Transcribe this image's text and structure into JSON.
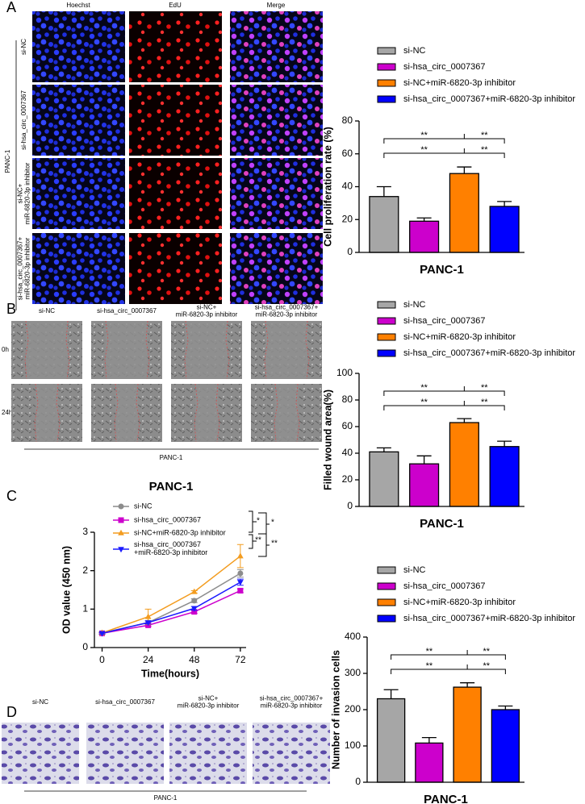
{
  "panel_labels": [
    "A",
    "B",
    "C",
    "D"
  ],
  "panel_a": {
    "columns": [
      "Hoechst",
      "EdU",
      "Merge"
    ],
    "rows": [
      "si-NC",
      "si-hsa_circ_0007367",
      "si-NC+\nmiR-6820-3p inhibitor",
      "si-hsa_circ_0007367+\nmiR-6820-3p inhibitor"
    ],
    "group": "PANC-1"
  },
  "panel_b": {
    "columns": [
      "si-NC",
      "si-hsa_circ_0007367",
      "si-NC+\nmiR-6820-3p inhibitor",
      "si-hsa_circ_0007367+\nmiR-6820-3p inhibitor"
    ],
    "rows": [
      "0h",
      "24h"
    ],
    "group": "PANC-1"
  },
  "panel_d": {
    "columns": [
      "si-NC",
      "si-hsa_circ_0007367",
      "si-NC+\nmiR-6820-3p inhibitor",
      "si-hsa_circ_0007367+\nmiR-6820-3p inhibitor"
    ],
    "group": "PANC-1"
  },
  "chart_data": [
    {
      "type": "bar",
      "xlabel": "PANC-1",
      "ylabel": "Cell proliferation rate (%)",
      "ylim": [
        0,
        80
      ],
      "yticks": [
        0,
        20,
        40,
        60,
        80
      ],
      "series": [
        {
          "name": "si-NC",
          "color": "#a6a6a6",
          "values": [
            34
          ],
          "errors": [
            6
          ]
        },
        {
          "name": "si-hsa_circ_0007367",
          "color": "#cc00cc",
          "values": [
            19
          ],
          "errors": [
            2
          ]
        },
        {
          "name": "si-NC+miR-6820-3p inhibitor",
          "color": "#ff8000",
          "values": [
            48
          ],
          "errors": [
            4
          ]
        },
        {
          "name": "si-hsa_circ_0007367+miR-6820-3p inhibitor",
          "color": "#0000ff",
          "values": [
            28
          ],
          "errors": [
            3
          ]
        }
      ],
      "annotations": [
        "**",
        "**",
        "**",
        "**"
      ]
    },
    {
      "type": "bar",
      "xlabel": "PANC-1",
      "ylabel": "Filled wound area(%)",
      "ylim": [
        0,
        100
      ],
      "yticks": [
        0,
        20,
        40,
        60,
        80,
        100
      ],
      "series": [
        {
          "name": "si-NC",
          "color": "#a6a6a6",
          "values": [
            41
          ],
          "errors": [
            3
          ]
        },
        {
          "name": "si-hsa_circ_0007367",
          "color": "#cc00cc",
          "values": [
            32
          ],
          "errors": [
            6
          ]
        },
        {
          "name": "si-NC+miR-6820-3p inhibitor",
          "color": "#ff8000",
          "values": [
            63
          ],
          "errors": [
            3
          ]
        },
        {
          "name": "si-hsa_circ_0007367+miR-6820-3p inhibitor",
          "color": "#0000ff",
          "values": [
            45
          ],
          "errors": [
            4
          ]
        }
      ],
      "annotations": [
        "**",
        "**",
        "**",
        "**"
      ]
    },
    {
      "type": "line",
      "title": "PANC-1",
      "xlabel": "Time(hours)",
      "ylabel": "OD value (450 nm)",
      "x": [
        0,
        24,
        48,
        72
      ],
      "xlim": [
        -4,
        75
      ],
      "xticks": [
        0,
        24,
        48,
        72
      ],
      "ylim": [
        0,
        3
      ],
      "yticks": [
        0,
        1,
        2,
        3
      ],
      "series": [
        {
          "name": "si-NC",
          "color": "#8c8c8c",
          "marker": "circle",
          "values": [
            0.38,
            0.65,
            1.22,
            1.93
          ],
          "errors": [
            0.02,
            0.05,
            0.05,
            0.1
          ]
        },
        {
          "name": "si-hsa_circ_0007367",
          "color": "#cc00cc",
          "marker": "square",
          "values": [
            0.37,
            0.58,
            0.93,
            1.48
          ],
          "errors": [
            0.02,
            0.03,
            0.04,
            0.05
          ]
        },
        {
          "name": "si-NC+miR-6820-3p inhibitor",
          "color": "#f39c1f",
          "marker": "triangle",
          "values": [
            0.38,
            0.8,
            1.45,
            2.38
          ],
          "errors": [
            0.03,
            0.2,
            0.03,
            0.3
          ]
        },
        {
          "name": "si-hsa_circ_0007367\n+miR-6820-3p inhibitor",
          "color": "#1a1aff",
          "marker": "triangle-down",
          "values": [
            0.37,
            0.65,
            1.02,
            1.7
          ],
          "errors": [
            0.02,
            0.04,
            0.05,
            0.08
          ]
        }
      ],
      "annotations": [
        "*",
        "*",
        "**",
        "**"
      ]
    },
    {
      "type": "bar",
      "xlabel": "PANC-1",
      "ylabel": "Number of invasion cells",
      "ylim": [
        0,
        400
      ],
      "yticks": [
        0,
        100,
        200,
        300,
        400
      ],
      "series": [
        {
          "name": "si-NC",
          "color": "#a6a6a6",
          "values": [
            230
          ],
          "errors": [
            25
          ]
        },
        {
          "name": "si-hsa_circ_0007367",
          "color": "#cc00cc",
          "values": [
            108
          ],
          "errors": [
            15
          ]
        },
        {
          "name": "si-NC+miR-6820-3p inhibitor",
          "color": "#ff8000",
          "values": [
            262
          ],
          "errors": [
            12
          ]
        },
        {
          "name": "si-hsa_circ_0007367+miR-6820-3p inhibitor",
          "color": "#0000ff",
          "values": [
            200
          ],
          "errors": [
            10
          ]
        }
      ],
      "annotations": [
        "**",
        "**",
        "**",
        "**"
      ]
    }
  ]
}
